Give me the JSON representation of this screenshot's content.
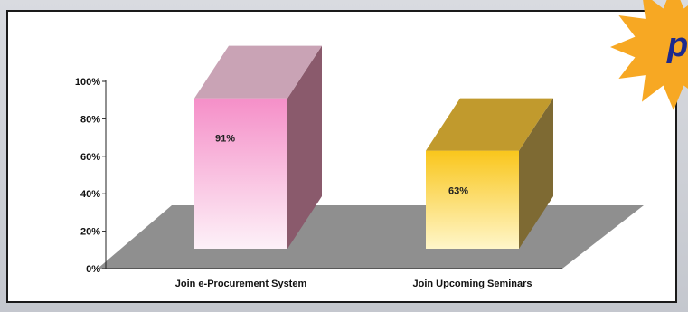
{
  "badge": {
    "text": "p",
    "color": "#f7a823",
    "text_color": "#1d2a8c"
  },
  "colors": {
    "panel_border": "#1a1a1a",
    "floor": "#8f8f8f",
    "outer_bg": "#cfd2d8"
  },
  "chart_data": {
    "type": "bar",
    "categories": [
      "Join e-Procurement System",
      "Join Upcoming Seminars"
    ],
    "values": [
      91,
      63
    ],
    "data_labels": [
      "91%",
      "63%"
    ],
    "ylim": [
      0,
      100
    ],
    "yticks": [
      0,
      20,
      40,
      60,
      80,
      100
    ],
    "ytick_labels": [
      "0%",
      "20%",
      "40%",
      "60%",
      "80%",
      "100%"
    ],
    "bar_colors": [
      {
        "front_top": "#f58fc8",
        "front_bottom": "#fdf1f8",
        "side": "#8a5a6c",
        "top": "#c9a3b5"
      },
      {
        "front_top": "#f9c61c",
        "front_bottom": "#fff6c9",
        "side": "#7e6a33",
        "top": "#c19a2d"
      }
    ],
    "style": "3d"
  }
}
